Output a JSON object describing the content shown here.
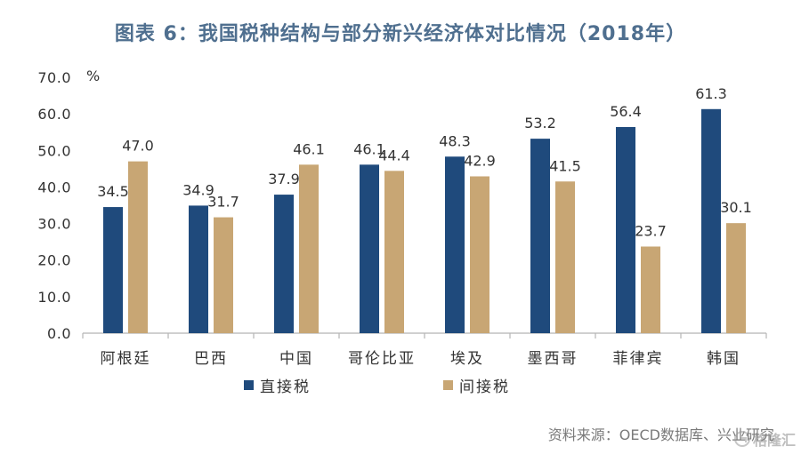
{
  "chart_data": {
    "type": "bar",
    "title": "图表 6：我国税种结构与部分新兴经济体对比情况（2018年）",
    "xlabel": "",
    "ylabel": "%",
    "ylim": [
      0,
      70
    ],
    "yticks": [
      0,
      10,
      20,
      30,
      40,
      50,
      60,
      70
    ],
    "ytick_labels": [
      "0.0",
      "10.0",
      "20.0",
      "30.0",
      "40.0",
      "50.0",
      "60.0",
      "70.0"
    ],
    "categories": [
      "阿根廷",
      "巴西",
      "中国",
      "哥伦比亚",
      "埃及",
      "墨西哥",
      "菲律宾",
      "韩国"
    ],
    "series": [
      {
        "name": "直接税",
        "color": "#1f4a7c",
        "values": [
          34.5,
          34.9,
          37.9,
          46.1,
          48.3,
          53.2,
          56.4,
          61.3
        ]
      },
      {
        "name": "间接税",
        "color": "#c8a674",
        "values": [
          47.0,
          31.7,
          46.1,
          44.4,
          42.9,
          41.5,
          23.7,
          30.1
        ]
      }
    ],
    "data_labels": true,
    "grid": false,
    "legend": "bottom"
  },
  "source": "资料来源：OECD数据库、兴业研究",
  "watermark": "格隆汇"
}
